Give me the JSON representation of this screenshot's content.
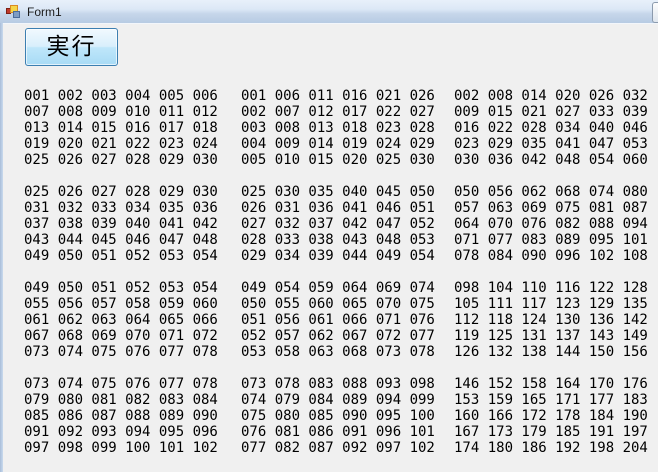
{
  "window": {
    "title": "Form1"
  },
  "button": {
    "label": "実行"
  },
  "columns": [
    {
      "id": "row-major-sequential",
      "blocks": [
        [
          "001 002 003 004 005 006",
          "007 008 009 010 011 012",
          "013 014 015 016 017 018",
          "019 020 021 022 023 024",
          "025 026 027 028 029 030"
        ],
        [
          "025 026 027 028 029 030",
          "031 032 033 034 035 036",
          "037 038 039 040 041 042",
          "043 044 045 046 047 048",
          "049 050 051 052 053 054"
        ],
        [
          "049 050 051 052 053 054",
          "055 056 057 058 059 060",
          "061 062 063 064 065 066",
          "067 068 069 070 071 072",
          "073 074 075 076 077 078"
        ],
        [
          "073 074 075 076 077 078",
          "079 080 081 082 083 084",
          "085 086 087 088 089 090",
          "091 092 093 094 095 096",
          "097 098 099 100 101 102"
        ]
      ]
    },
    {
      "id": "column-major",
      "blocks": [
        [
          "001 006 011 016 021 026",
          "002 007 012 017 022 027",
          "003 008 013 018 023 028",
          "004 009 014 019 024 029",
          "005 010 015 020 025 030"
        ],
        [
          "025 030 035 040 045 050",
          "026 031 036 041 046 051",
          "027 032 037 042 047 052",
          "028 033 038 043 048 053",
          "029 034 039 044 049 054"
        ],
        [
          "049 054 059 064 069 074",
          "050 055 060 065 070 075",
          "051 056 061 066 071 076",
          "052 057 062 067 072 077",
          "053 058 063 068 073 078"
        ],
        [
          "073 078 083 088 093 098",
          "074 079 084 089 094 099",
          "075 080 085 090 095 100",
          "076 081 086 091 096 101",
          "077 082 087 092 097 102"
        ]
      ]
    },
    {
      "id": "step-six-across-seven-down",
      "blocks": [
        [
          "002 008 014 020 026 032",
          "009 015 021 027 033 039",
          "016 022 028 034 040 046",
          "023 029 035 041 047 053",
          "030 036 042 048 054 060"
        ],
        [
          "050 056 062 068 074 080",
          "057 063 069 075 081 087",
          "064 070 076 082 088 094",
          "071 077 083 089 095 101",
          "078 084 090 096 102 108"
        ],
        [
          "098 104 110 116 122 128",
          "105 111 117 123 129 135",
          "112 118 124 130 136 142",
          "119 125 131 137 143 149",
          "126 132 138 144 150 156"
        ],
        [
          "146 152 158 164 170 176",
          "153 159 165 171 177 183",
          "160 166 172 178 184 190",
          "167 173 179 185 191 197",
          "174 180 186 192 198 204"
        ]
      ]
    }
  ],
  "colors": {
    "client_background": "#f0f0f0",
    "titlebar_top": "#e8f0fa",
    "titlebar_bottom": "#b7cbe3",
    "button_border": "#3c7fb1",
    "button_fill_top": "#f1f9fe",
    "button_fill_bottom": "#a8dbf5",
    "number_text": "#000000"
  }
}
